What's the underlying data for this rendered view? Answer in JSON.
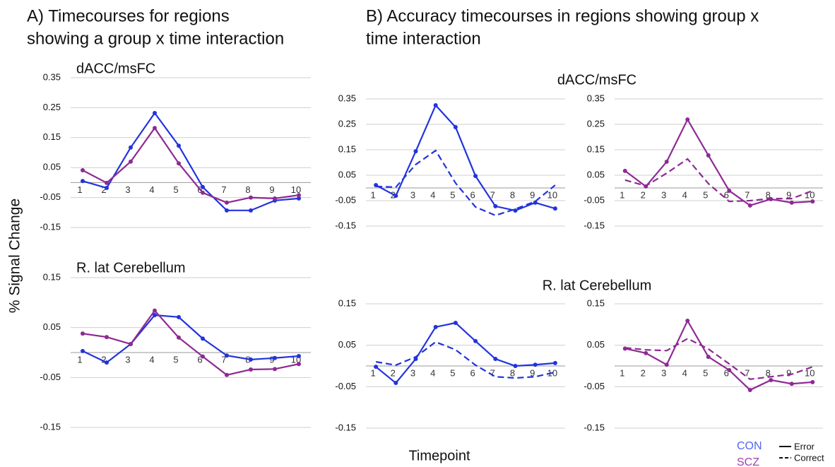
{
  "figure": {
    "panel_a_title": [
      "A) Timecourses for regions",
      "showing a group x time interaction"
    ],
    "panel_b_title": [
      "B) Accuracy timecourses in regions showing group x",
      "time interaction"
    ],
    "y_label": "% Signal Change",
    "x_label": "Timepoint"
  },
  "chart_data": [
    {
      "type": "line",
      "title": "dACC/msFC",
      "categories": [
        "1",
        "2",
        "3",
        "4",
        "5",
        "6",
        "7",
        "8",
        "9",
        "10"
      ],
      "ylim": [
        -0.15,
        0.35
      ],
      "yticks": [
        -0.15,
        -0.05,
        0.05,
        0.15,
        0.25,
        0.35
      ],
      "grid": true,
      "series": [
        {
          "name": "CON",
          "color": "#2233dd",
          "dashed": false,
          "values": [
            0.005,
            -0.018,
            0.117,
            0.232,
            0.123,
            -0.015,
            -0.093,
            -0.093,
            -0.06,
            -0.053
          ]
        },
        {
          "name": "SCZ",
          "color": "#8e2a94",
          "dashed": false,
          "values": [
            0.041,
            -0.001,
            0.07,
            0.182,
            0.064,
            -0.034,
            -0.067,
            -0.05,
            -0.053,
            -0.042
          ]
        }
      ]
    },
    {
      "type": "line",
      "title": "R. lat Cerebellum",
      "categories": [
        "1",
        "2",
        "3",
        "4",
        "5",
        "6",
        "7",
        "8",
        "9",
        "10"
      ],
      "ylim": [
        -0.15,
        0.15
      ],
      "yticks": [
        -0.15,
        -0.05,
        0.05,
        0.15
      ],
      "grid": true,
      "series": [
        {
          "name": "CON",
          "color": "#2233dd",
          "dashed": false,
          "values": [
            0.003,
            -0.02,
            0.017,
            0.075,
            0.071,
            0.028,
            -0.006,
            -0.014,
            -0.011,
            -0.007
          ]
        },
        {
          "name": "SCZ",
          "color": "#8e2a94",
          "dashed": false,
          "values": [
            0.038,
            0.031,
            0.017,
            0.084,
            0.03,
            -0.008,
            -0.045,
            -0.034,
            -0.033,
            -0.023
          ]
        }
      ]
    },
    {
      "type": "line",
      "title": "dACC/msFC",
      "categories": [
        "1",
        "2",
        "3",
        "4",
        "5",
        "6",
        "7",
        "8",
        "9",
        "10"
      ],
      "ylim": [
        -0.15,
        0.35
      ],
      "yticks": [
        -0.15,
        -0.05,
        0.05,
        0.15,
        0.25,
        0.35
      ],
      "grid": true,
      "series": [
        {
          "name": "Error",
          "color": "#2233dd",
          "dashed": false,
          "values": [
            0.011,
            -0.031,
            0.144,
            0.325,
            0.239,
            0.047,
            -0.072,
            -0.089,
            -0.058,
            -0.081
          ]
        },
        {
          "name": "Correct",
          "color": "#2233dd",
          "dashed": true,
          "values": [
            0.006,
            0.003,
            0.092,
            0.147,
            0.019,
            -0.075,
            -0.108,
            -0.083,
            -0.053,
            0.011
          ]
        }
      ]
    },
    {
      "type": "line",
      "categories": [
        "1",
        "2",
        "3",
        "4",
        "5",
        "6",
        "7",
        "8",
        "9",
        "10"
      ],
      "ylim": [
        -0.15,
        0.35
      ],
      "yticks": [
        -0.15,
        -0.05,
        0.05,
        0.15,
        0.25,
        0.35
      ],
      "grid": true,
      "series": [
        {
          "name": "Error",
          "color": "#8e2a94",
          "dashed": false,
          "values": [
            0.067,
            0.006,
            0.103,
            0.269,
            0.128,
            -0.011,
            -0.069,
            -0.044,
            -0.058,
            -0.053
          ]
        },
        {
          "name": "Correct",
          "color": "#8e2a94",
          "dashed": true,
          "values": [
            0.031,
            0.008,
            0.058,
            0.114,
            0.017,
            -0.053,
            -0.05,
            -0.042,
            -0.042,
            -0.011
          ]
        }
      ]
    },
    {
      "type": "line",
      "title": "R. lat Cerebellum",
      "categories": [
        "1",
        "2",
        "3",
        "4",
        "5",
        "6",
        "7",
        "8",
        "9",
        "10"
      ],
      "ylim": [
        -0.15,
        0.15
      ],
      "yticks": [
        -0.15,
        -0.05,
        0.05,
        0.15
      ],
      "grid": true,
      "series": [
        {
          "name": "Error",
          "color": "#2233dd",
          "dashed": false,
          "values": [
            -0.002,
            -0.041,
            0.017,
            0.094,
            0.104,
            0.06,
            0.017,
            0,
            0.003,
            0.007
          ]
        },
        {
          "name": "Correct",
          "color": "#2233dd",
          "dashed": true,
          "values": [
            0.01,
            0.002,
            0.022,
            0.058,
            0.039,
            0.002,
            -0.026,
            -0.029,
            -0.026,
            -0.015
          ]
        }
      ]
    },
    {
      "type": "line",
      "categories": [
        "1",
        "2",
        "3",
        "4",
        "5",
        "6",
        "7",
        "8",
        "9",
        "10"
      ],
      "ylim": [
        -0.15,
        0.15
      ],
      "yticks": [
        -0.15,
        -0.05,
        0.05,
        0.15
      ],
      "grid": true,
      "series": [
        {
          "name": "Error",
          "color": "#8e2a94",
          "dashed": false,
          "values": [
            0.042,
            0.031,
            0.003,
            0.109,
            0.022,
            -0.01,
            -0.058,
            -0.034,
            -0.043,
            -0.039
          ]
        },
        {
          "name": "Correct",
          "color": "#8e2a94",
          "dashed": true,
          "values": [
            0.044,
            0.039,
            0.037,
            0.066,
            0.041,
            0.005,
            -0.032,
            -0.026,
            -0.02,
            -0.002
          ]
        }
      ]
    }
  ]
}
